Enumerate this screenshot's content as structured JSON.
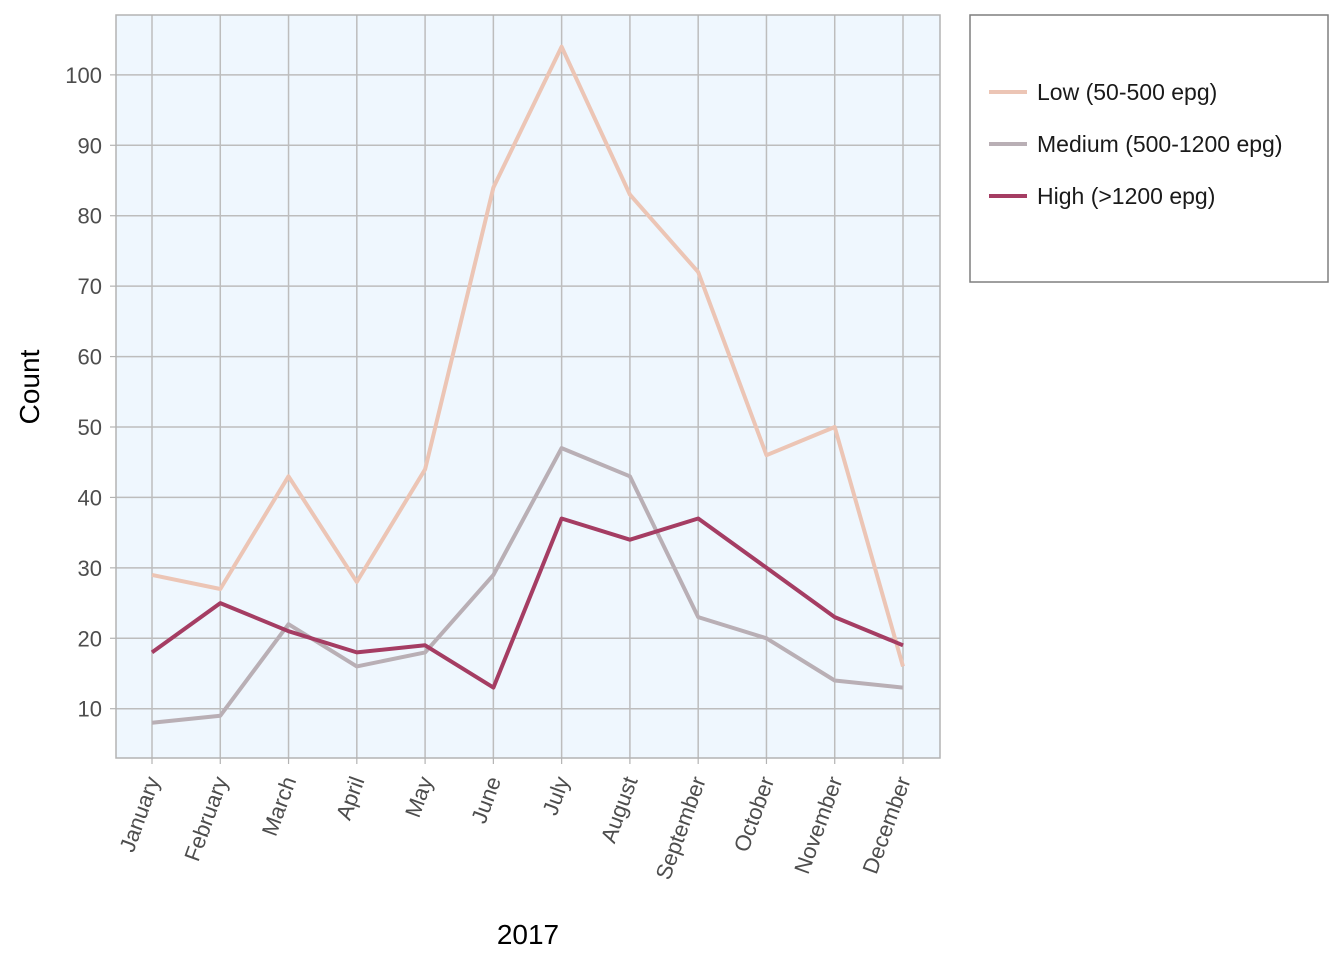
{
  "chart_data": {
    "type": "line",
    "xlabel": "2017",
    "ylabel": "Count",
    "categories": [
      "January",
      "February",
      "March",
      "April",
      "May",
      "June",
      "July",
      "August",
      "September",
      "October",
      "November",
      "December"
    ],
    "ylim": [
      3,
      108.5
    ],
    "yticks": [
      10,
      20,
      30,
      40,
      50,
      60,
      70,
      80,
      90,
      100
    ],
    "grid": true,
    "legend_position": "right",
    "colors": {
      "panel_background": "#eff7fe",
      "grid": "#bdbdbd",
      "panel_border": "#b3b3b3"
    },
    "series": [
      {
        "name": "Low (50-500 epg)",
        "color": "#ecc5b5",
        "values": [
          29,
          27,
          43,
          28,
          44,
          84,
          104,
          83,
          72,
          46,
          50,
          16
        ]
      },
      {
        "name": "Medium (500-1200 epg)",
        "color": "#b9afb5",
        "values": [
          8,
          9,
          22,
          16,
          18,
          29,
          47,
          43,
          23,
          20,
          14,
          13
        ]
      },
      {
        "name": "High (>1200 epg)",
        "color": "#a53d63",
        "values": [
          18,
          25,
          21,
          18,
          19,
          13,
          37,
          34,
          37,
          30,
          23,
          19
        ]
      }
    ]
  }
}
